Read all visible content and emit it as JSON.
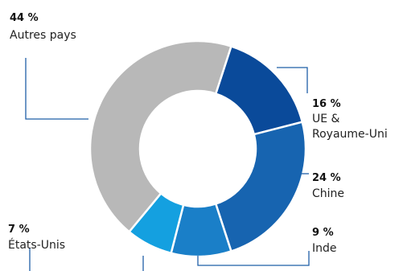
{
  "chart_data": {
    "type": "donut",
    "unit": "%",
    "series": [
      {
        "label_value": "16 %",
        "name": "UE &",
        "name_line2": "Royaume-Uni",
        "value": 16,
        "color": "#0a4a9a"
      },
      {
        "label_value": "24 %",
        "name": "Chine",
        "value": 24,
        "color": "#1764b0"
      },
      {
        "label_value": "9 %",
        "name": "Inde",
        "value": 9,
        "color": "#1a7fc8"
      },
      {
        "label_value": "7 %",
        "name": "États-Unis",
        "value": 7,
        "color": "#14a0e0"
      },
      {
        "label_value": "44 %",
        "name": "Autres pays",
        "value": 44,
        "color": "#b8b8b8"
      }
    ]
  }
}
